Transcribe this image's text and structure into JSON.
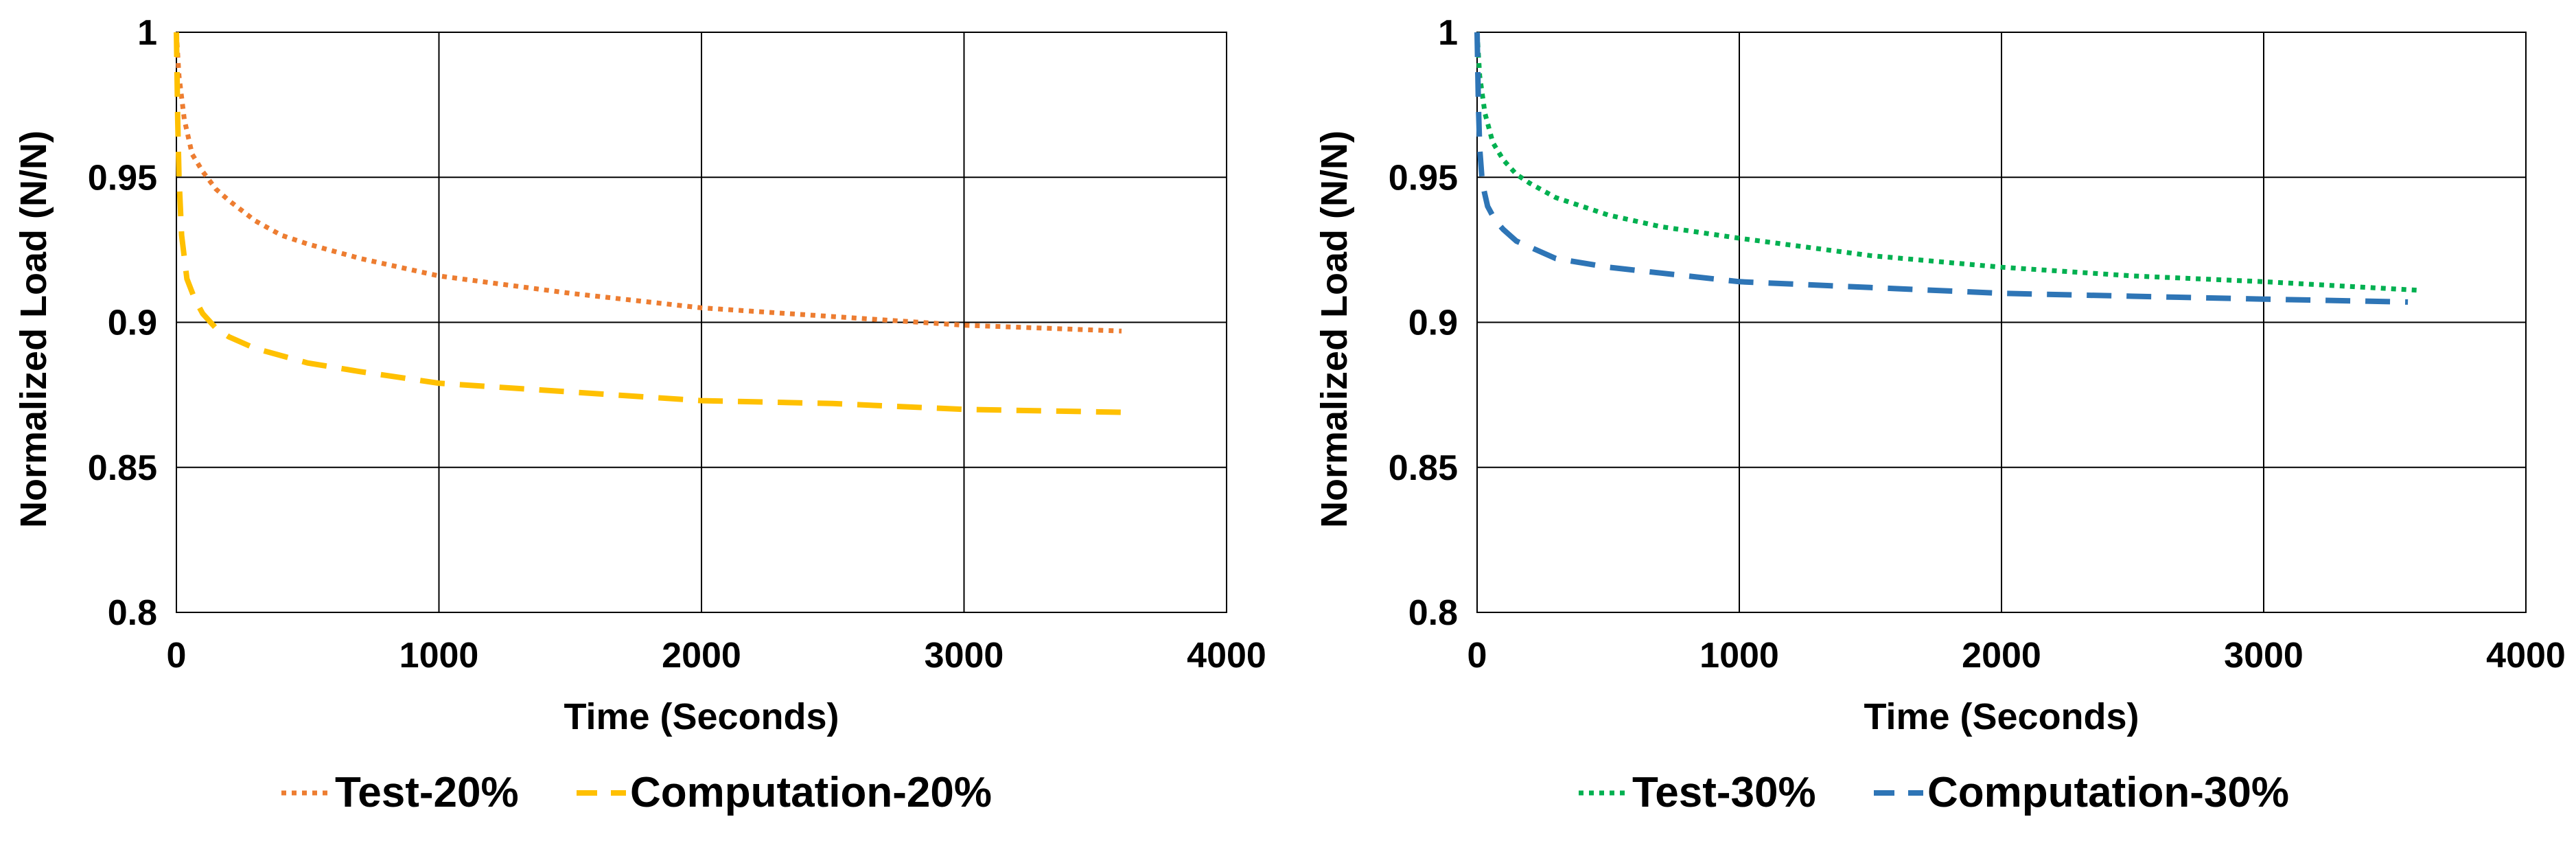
{
  "chart_data": [
    {
      "type": "line",
      "title": "",
      "xlabel": "Time (Seconds)",
      "ylabel": "Normalized Load (N/N)",
      "xlim": [
        0,
        4000
      ],
      "ylim": [
        0.8,
        1.0
      ],
      "xticks": [
        0,
        1000,
        2000,
        3000,
        4000
      ],
      "yticks": [
        0.8,
        0.85,
        0.9,
        0.95,
        1.0
      ],
      "xtick_labels": [
        "0",
        "1000",
        "2000",
        "3000",
        "4000"
      ],
      "ytick_labels": [
        "0.8",
        "0.85",
        "0.9",
        "0.95",
        "1"
      ],
      "grid": true,
      "legend_position": "bottom",
      "series": [
        {
          "name": "Test-20%",
          "color": "#ED7D31",
          "style": "dotted",
          "x": [
            0,
            10,
            30,
            60,
            100,
            150,
            200,
            300,
            400,
            500,
            700,
            1000,
            1500,
            2000,
            2500,
            3000,
            3600
          ],
          "y": [
            1.0,
            0.985,
            0.97,
            0.958,
            0.952,
            0.946,
            0.942,
            0.935,
            0.93,
            0.927,
            0.922,
            0.916,
            0.91,
            0.905,
            0.902,
            0.899,
            0.897
          ]
        },
        {
          "name": "Computation-20%",
          "color": "#FFC000",
          "style": "dashed",
          "x": [
            0,
            5,
            10,
            20,
            40,
            70,
            100,
            150,
            200,
            300,
            500,
            700,
            1000,
            1500,
            2000,
            2500,
            3000,
            3600
          ],
          "y": [
            1.0,
            0.97,
            0.95,
            0.93,
            0.915,
            0.908,
            0.903,
            0.898,
            0.895,
            0.891,
            0.886,
            0.883,
            0.879,
            0.876,
            0.873,
            0.872,
            0.87,
            0.869
          ]
        }
      ]
    },
    {
      "type": "line",
      "title": "",
      "xlabel": "Time (Seconds)",
      "ylabel": "Normalized Load (N/N)",
      "xlim": [
        0,
        4000
      ],
      "ylim": [
        0.8,
        1.0
      ],
      "xticks": [
        0,
        1000,
        2000,
        3000,
        4000
      ],
      "yticks": [
        0.8,
        0.85,
        0.9,
        0.95,
        1.0
      ],
      "xtick_labels": [
        "0",
        "1000",
        "2000",
        "3000",
        "4000"
      ],
      "ytick_labels": [
        "0.8",
        "0.85",
        "0.9",
        "0.95",
        "1"
      ],
      "grid": true,
      "legend_position": "bottom",
      "series": [
        {
          "name": "Test-30%",
          "color": "#00B050",
          "style": "dotted",
          "x": [
            0,
            10,
            30,
            60,
            100,
            150,
            200,
            300,
            400,
            500,
            700,
            1000,
            1500,
            2000,
            2500,
            3000,
            3600
          ],
          "y": [
            1.0,
            0.985,
            0.972,
            0.962,
            0.956,
            0.951,
            0.948,
            0.943,
            0.94,
            0.937,
            0.933,
            0.929,
            0.923,
            0.919,
            0.916,
            0.914,
            0.911
          ]
        },
        {
          "name": "Computation-30%",
          "color": "#2E75B6",
          "style": "dashed",
          "x": [
            0,
            5,
            10,
            20,
            40,
            70,
            100,
            150,
            200,
            300,
            500,
            700,
            1000,
            1500,
            2000,
            2500,
            3000,
            3550
          ],
          "y": [
            1.0,
            0.975,
            0.96,
            0.948,
            0.94,
            0.935,
            0.932,
            0.928,
            0.926,
            0.922,
            0.919,
            0.917,
            0.914,
            0.912,
            0.91,
            0.909,
            0.908,
            0.907
          ]
        }
      ]
    }
  ]
}
